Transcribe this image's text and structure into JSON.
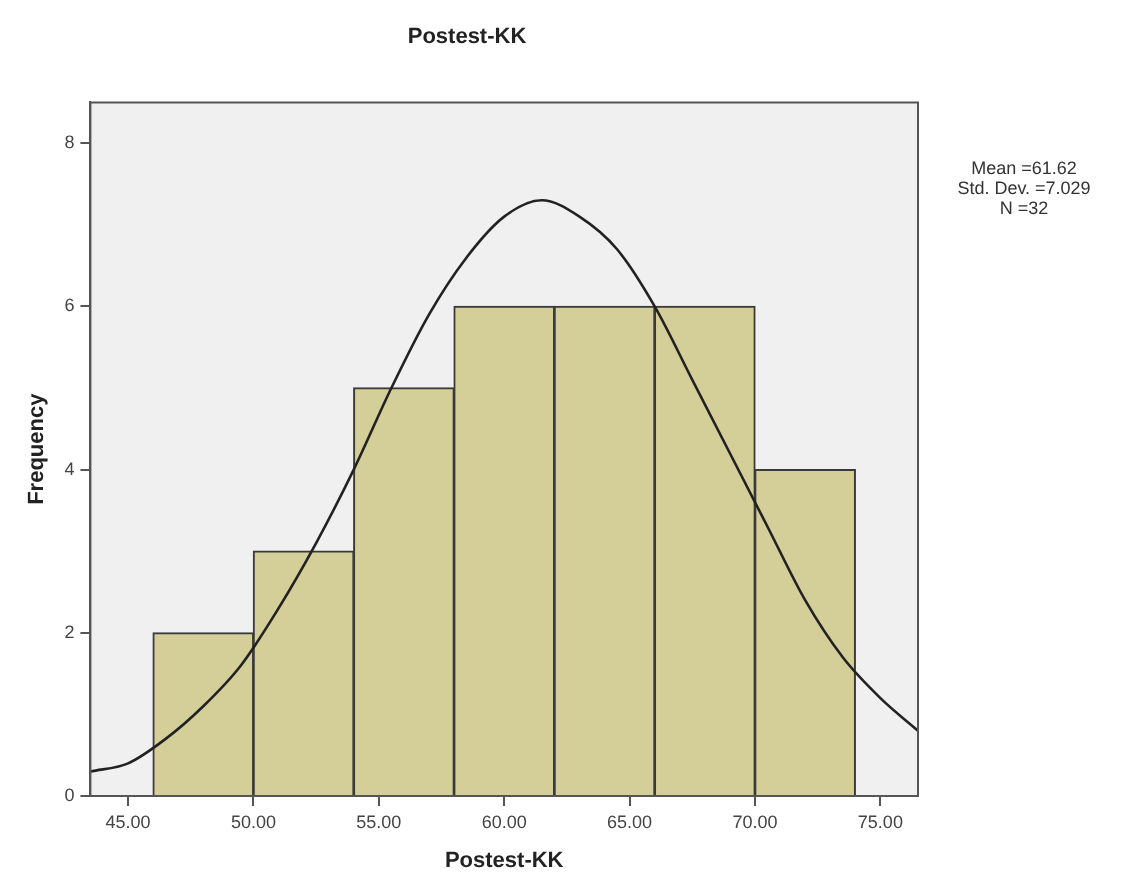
{
  "chart_data": {
    "type": "histogram",
    "title": "Postest-KK",
    "xlabel": "Postest-KK",
    "ylabel": "Frequency",
    "bins": [
      46,
      50,
      54,
      58,
      62,
      66,
      70,
      74
    ],
    "values": [
      2,
      3,
      5,
      6,
      6,
      6,
      4
    ],
    "color": "#d4cf98",
    "series": [
      {
        "type": "line",
        "color": "#222222",
        "x": [
          43.5,
          45,
          46.5,
          48,
          49.5,
          51,
          52.5,
          54,
          55.5,
          57,
          58.5,
          60,
          61.5,
          63,
          64.5,
          66,
          67.5,
          69,
          70.5,
          72,
          73.5,
          75,
          76.5
        ],
        "values": [
          0.3,
          0.4,
          0.7,
          1.1,
          1.6,
          2.3,
          3.1,
          4.0,
          5.0,
          5.9,
          6.6,
          7.1,
          7.3,
          7.1,
          6.7,
          6.0,
          5.1,
          4.2,
          3.3,
          2.4,
          1.7,
          1.2,
          0.8
        ]
      }
    ],
    "marker": "none",
    "line_style": "solid",
    "grid": false,
    "legend": false,
    "xlim": [
      43.5,
      76.5
    ],
    "ylim": [
      0,
      8.5
    ],
    "xticks": [
      {
        "value": 45,
        "label": "45.00"
      },
      {
        "value": 50,
        "label": "50.00"
      },
      {
        "value": 55,
        "label": "55.00"
      },
      {
        "value": 60,
        "label": "60.00"
      },
      {
        "value": 65,
        "label": "65.00"
      },
      {
        "value": 70,
        "label": "70.00"
      },
      {
        "value": 75,
        "label": "75.00"
      }
    ],
    "yticks": [
      0,
      2,
      4,
      6,
      8
    ],
    "annotations": [
      "Mean =61.62",
      "Std. Dev. =7.029",
      "N =32"
    ]
  }
}
